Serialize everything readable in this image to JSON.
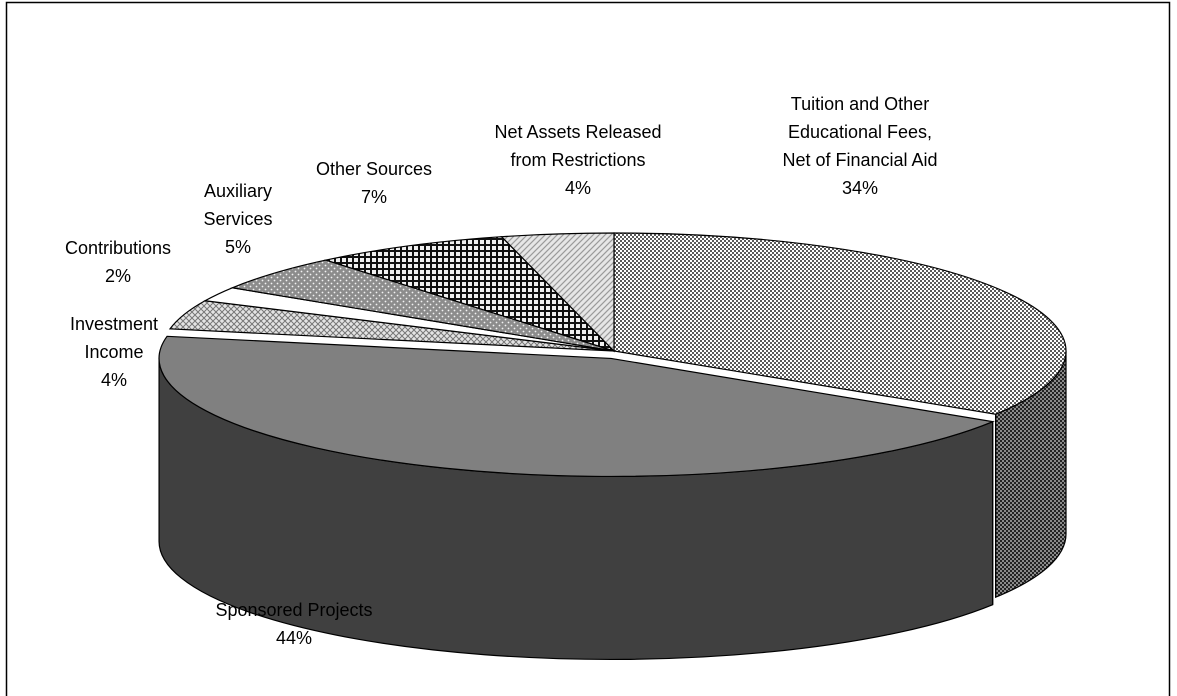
{
  "chart_data": {
    "type": "pie",
    "style": "3d-exploded-perspective",
    "legend": "none",
    "title": "",
    "slices": [
      {
        "label_lines": [
          "Tuition and Other",
          "Educational Fees,",
          "Net of Financial Aid"
        ],
        "value": 34,
        "value_label": "34%",
        "pattern": "checker-fine"
      },
      {
        "label_lines": [
          "Sponsored Projects"
        ],
        "value": 44,
        "value_label": "44%",
        "pattern": "solid-gray"
      },
      {
        "label_lines": [
          "Investment",
          "Income"
        ],
        "value": 4,
        "value_label": "4%",
        "pattern": "crosshatch-light"
      },
      {
        "label_lines": [
          "Contributions"
        ],
        "value": 2,
        "value_label": "2%",
        "pattern": "white"
      },
      {
        "label_lines": [
          "Auxiliary",
          "Services"
        ],
        "value": 5,
        "value_label": "5%",
        "pattern": "dotted-gray"
      },
      {
        "label_lines": [
          "Other Sources"
        ],
        "value": 7,
        "value_label": "7%",
        "pattern": "grid-dark"
      },
      {
        "label_lines": [
          "Net Assets Released",
          "from Restrictions"
        ],
        "value": 4,
        "value_label": "4%",
        "pattern": "diagonal-light"
      }
    ]
  }
}
